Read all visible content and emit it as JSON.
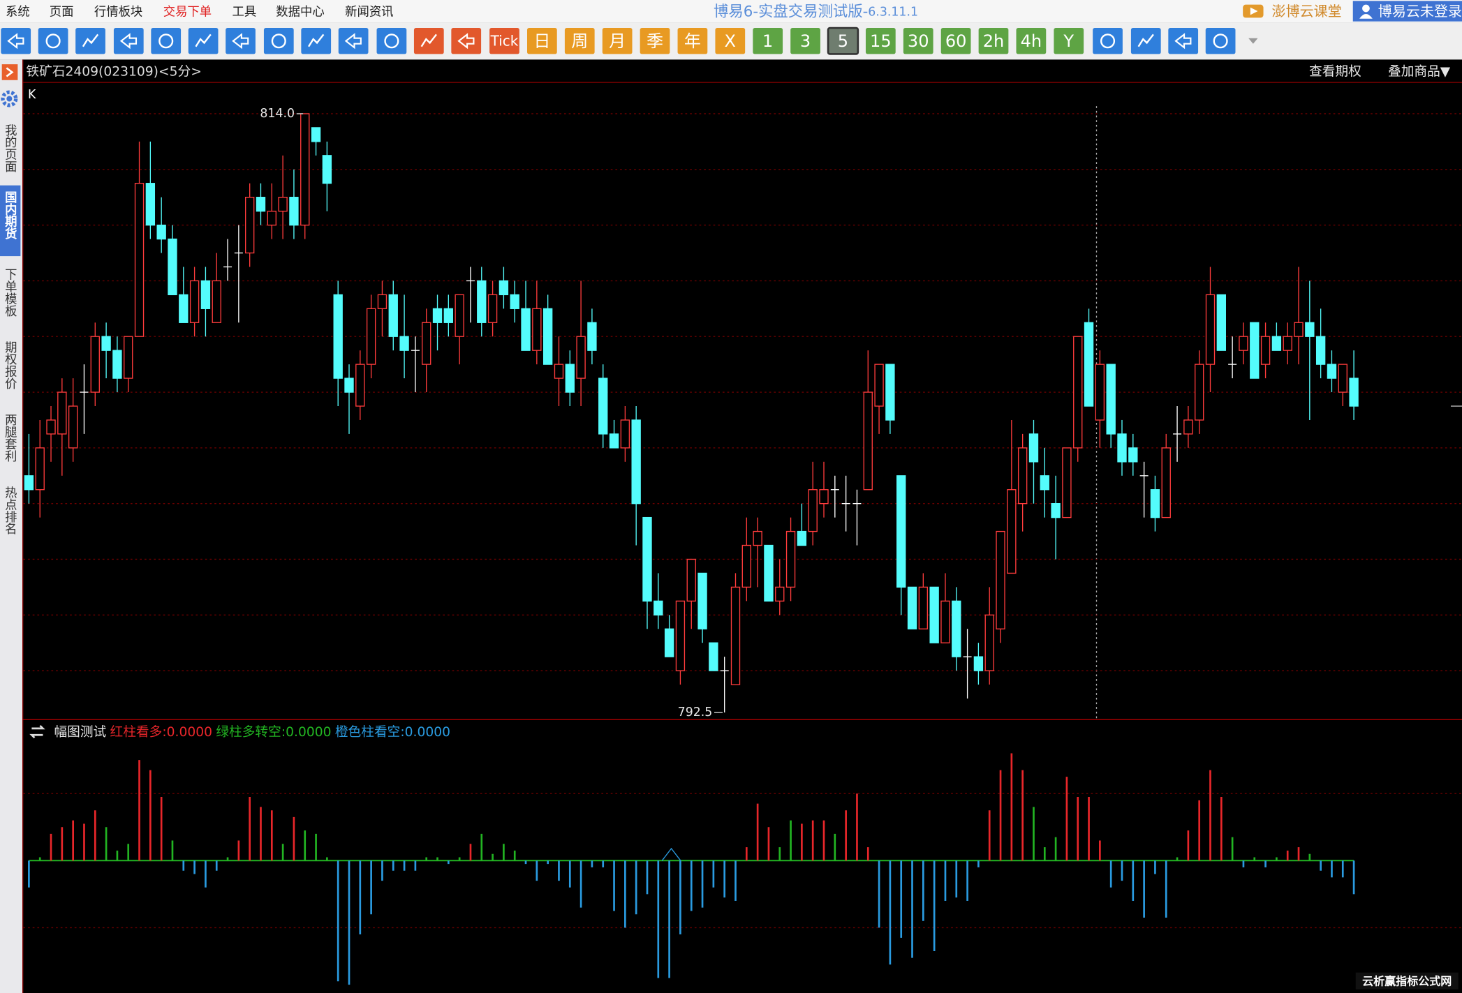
{
  "menu": [
    "系统",
    "页面",
    "行情板块",
    "交易下单",
    "工具",
    "数据中心",
    "新闻资讯"
  ],
  "menu_active": 3,
  "app_title": "博易6-实盘交易测试版-",
  "app_version": "6.3.11.1",
  "header_links": [
    "澎博云课堂",
    "博易云未登录"
  ],
  "toolbar_buttons": [
    {
      "label": "Tick",
      "color": "#e2582c"
    },
    {
      "label": "日",
      "color": "#e89a22"
    },
    {
      "label": "周",
      "color": "#e89a22"
    },
    {
      "label": "月",
      "color": "#e89a22"
    },
    {
      "label": "季",
      "color": "#e89a22"
    },
    {
      "label": "年",
      "color": "#e89a22"
    },
    {
      "label": "X",
      "color": "#e89a22"
    },
    {
      "label": "1",
      "color": "#5ea444"
    },
    {
      "label": "3",
      "color": "#5ea444"
    },
    {
      "label": "5",
      "color": "#6f7d6f",
      "selected": true
    },
    {
      "label": "15",
      "color": "#5ea444"
    },
    {
      "label": "30",
      "color": "#5ea444"
    },
    {
      "label": "60",
      "color": "#5ea444"
    },
    {
      "label": "2h",
      "color": "#5ea444"
    },
    {
      "label": "4h",
      "color": "#5ea444"
    },
    {
      "label": "Y",
      "color": "#5ea444"
    }
  ],
  "sidebar": [
    "我的页面",
    "国内期货",
    "下单模板",
    "期权报价",
    "两腿套利",
    "热点排名"
  ],
  "sidebar_active": 1,
  "chart_header": {
    "options_button": "查看期权",
    "overlay_button": "叠加商品▼"
  },
  "watermark": "云析赢指标公式网",
  "chart_data": [
    {
      "type": "candlestick",
      "title": "铁矿石2409(023109)<5分>",
      "label": "K",
      "up_color": "#ff3c3c",
      "down_color": "#54fcfc",
      "flat_color": "#ffffff",
      "ylim": [
        792.26,
        815.14
      ],
      "grid_lines": [
        794,
        796,
        798,
        800,
        802,
        804,
        806,
        808,
        810,
        812,
        814
      ],
      "max_label": {
        "value": 814,
        "label": "814.0"
      },
      "min_label": {
        "value": 792.5,
        "label": "792.5"
      },
      "open": [
        801,
        800.5,
        802.5,
        802.5,
        802,
        804,
        804,
        806,
        805.5,
        804.5,
        806,
        811.5,
        810,
        809.5,
        807.5,
        806.5,
        808,
        806.5,
        808.5,
        809,
        809,
        811,
        810,
        810.5,
        811,
        810,
        813.5,
        812.5,
        807.5,
        804.5,
        803.5,
        805,
        807,
        807.5,
        806,
        805.5,
        805,
        807,
        807,
        806,
        808,
        808,
        806.5,
        808,
        807.5,
        807,
        805.5,
        807,
        804.5,
        805,
        804.5,
        806.5,
        804.5,
        802.5,
        802,
        803,
        799.5,
        796.5,
        795.5,
        794,
        796.5,
        797.5,
        795,
        794,
        793.5,
        797,
        798.5,
        798.5,
        796.5,
        797,
        799,
        799,
        800,
        800.5,
        800,
        800,
        800.5,
        803.5,
        805,
        801,
        797,
        795.5,
        797,
        795,
        796.5,
        794.5,
        794.5,
        794,
        795.5,
        797.5,
        800,
        802.5,
        801,
        800,
        799.5,
        802,
        806.5,
        803,
        805,
        802.5,
        802,
        801,
        800.5,
        799.5,
        802.5,
        802.5,
        803,
        805,
        807.5,
        805,
        805.5,
        806.5,
        805,
        806,
        805.5,
        806,
        806.5,
        806,
        805,
        804,
        804.5
      ],
      "high": [
        802.5,
        803,
        803.5,
        804.5,
        804.5,
        805,
        806.5,
        806.5,
        806,
        806,
        813,
        813,
        811,
        810,
        808.5,
        808.5,
        808.5,
        809,
        809.5,
        810,
        811.5,
        811.5,
        811.5,
        812.5,
        812,
        814,
        813.5,
        813,
        808,
        805,
        805.5,
        807.5,
        808,
        808,
        807.5,
        806,
        807,
        807.5,
        807.5,
        807.5,
        808.5,
        808.5,
        808,
        808.5,
        808,
        808,
        808,
        807.5,
        806,
        805.5,
        808,
        807,
        805,
        803,
        803.5,
        803.5,
        799.5,
        797.5,
        796,
        796.5,
        798,
        797.5,
        795,
        794.5,
        797.5,
        799.5,
        799.5,
        798.5,
        798,
        799.5,
        800,
        801.5,
        801.5,
        801,
        801,
        800.5,
        805.5,
        805,
        805,
        801,
        797,
        797.5,
        797,
        797.5,
        797,
        795.5,
        795,
        797,
        799,
        803,
        802.5,
        803,
        802,
        801,
        802,
        806,
        807,
        805.5,
        805,
        803,
        802.5,
        801.5,
        801,
        802.5,
        803.5,
        803.5,
        805.5,
        808.5,
        807.5,
        806,
        806.5,
        806.5,
        806.5,
        806.5,
        806.5,
        808.5,
        808,
        807,
        805.5,
        805,
        805.5
      ],
      "low": [
        800,
        799.5,
        801.5,
        801,
        801.5,
        802.5,
        803.5,
        804.5,
        804,
        804,
        806,
        809.5,
        809,
        807.5,
        806.5,
        806,
        806,
        806.5,
        808,
        806.5,
        808.5,
        810,
        809.5,
        809.5,
        809.5,
        809.5,
        812.5,
        810.5,
        803.5,
        802.5,
        803,
        804.5,
        806,
        805.5,
        804.5,
        804,
        804,
        805.5,
        806,
        805,
        806.5,
        806,
        806,
        807,
        806.5,
        805.5,
        805,
        805,
        803.5,
        803.5,
        803.5,
        805,
        802,
        802,
        801.5,
        798.5,
        795.5,
        795.5,
        794.5,
        793.5,
        795.5,
        795,
        794,
        792.5,
        793.5,
        796.5,
        797,
        796.5,
        796,
        796.5,
        798.5,
        798.5,
        799.5,
        799.5,
        799,
        798.5,
        800.5,
        802.5,
        802.5,
        796,
        795.5,
        795.5,
        795,
        795,
        794,
        793,
        793.5,
        793.5,
        795,
        797.5,
        799,
        800,
        799.5,
        798,
        799.5,
        801.5,
        803.5,
        802,
        802,
        801,
        801,
        799.5,
        799,
        799.5,
        801.5,
        802,
        802.5,
        804,
        805.5,
        804.5,
        805,
        804.5,
        804.5,
        805.5,
        805,
        805,
        803,
        804.5,
        804,
        803.5,
        803
      ],
      "close": [
        800.5,
        802,
        803,
        804,
        803.5,
        804,
        806,
        805.5,
        804.5,
        806,
        811.5,
        810,
        809.5,
        807.5,
        806.5,
        808,
        807,
        808,
        808.5,
        809,
        811,
        810.5,
        810.5,
        811,
        810,
        814,
        813,
        811.5,
        804.5,
        804,
        805,
        807,
        807.5,
        806,
        805.5,
        805.5,
        806.5,
        806.5,
        806.5,
        807.5,
        808,
        806.5,
        807.5,
        807.5,
        807,
        805.5,
        807,
        805,
        805,
        804,
        806,
        805.5,
        802.5,
        802,
        803,
        800,
        796.5,
        796,
        794.5,
        796.5,
        798,
        795.5,
        794,
        794,
        797,
        798.5,
        799,
        796.5,
        797,
        799,
        798.5,
        800.5,
        800.5,
        800.5,
        800,
        800,
        804,
        805,
        803,
        797,
        795.5,
        797,
        795,
        796.5,
        794.5,
        794.5,
        794,
        796,
        799,
        800.5,
        802,
        801.5,
        800.5,
        799.5,
        802,
        806,
        803.5,
        805,
        802.5,
        801.5,
        801.5,
        801,
        799.5,
        802,
        802.5,
        803,
        805,
        807.5,
        805.5,
        805,
        806,
        804.5,
        806,
        805.5,
        806,
        806.5,
        806,
        805,
        804.5,
        805,
        803.5
      ]
    },
    {
      "type": "bar",
      "title": "幅图测试",
      "separator": ":",
      "zero_color": "#22b422",
      "ylim": [
        -19.6,
        21.1
      ],
      "grid_lines": [
        -10,
        10
      ],
      "series": [
        {
          "name": "红柱看多",
          "color": "#e8262a",
          "readout": {
            "value": 0,
            "label": "0.0000"
          },
          "values": [
            null,
            null,
            4,
            5,
            6,
            5.5,
            7.5,
            null,
            null,
            null,
            15,
            13.5,
            9.5,
            null,
            null,
            null,
            null,
            null,
            null,
            3,
            9.5,
            8,
            7.5,
            null,
            6.5,
            null,
            null,
            null,
            null,
            null,
            null,
            null,
            null,
            null,
            null,
            null,
            null,
            null,
            null,
            null,
            2.5,
            null,
            null,
            null,
            null,
            null,
            null,
            null,
            null,
            null,
            null,
            null,
            null,
            null,
            null,
            null,
            null,
            null,
            null,
            null,
            null,
            null,
            null,
            null,
            null,
            2,
            8.5,
            5,
            null,
            null,
            5.5,
            6,
            6,
            null,
            7.5,
            10,
            2,
            null,
            null,
            null,
            null,
            null,
            null,
            null,
            null,
            null,
            null,
            7.5,
            13.5,
            16,
            13.5,
            null,
            null,
            null,
            12.5,
            9.5,
            9.5,
            3,
            null,
            null,
            null,
            null,
            null,
            null,
            null,
            4.5,
            9,
            13.5,
            9.5,
            null,
            null,
            null,
            null,
            null,
            1.5,
            2,
            null,
            null,
            null,
            null,
            null
          ]
        },
        {
          "name": "绿柱多转空",
          "color": "#22b422",
          "readout": {
            "value": 0,
            "label": "0.0000"
          },
          "values": [
            null,
            0.5,
            null,
            null,
            null,
            null,
            null,
            5,
            1.5,
            2.5,
            null,
            null,
            null,
            3,
            null,
            null,
            null,
            null,
            0.5,
            null,
            null,
            null,
            null,
            2.5,
            null,
            4.5,
            4,
            0.5,
            null,
            null,
            null,
            null,
            null,
            null,
            null,
            null,
            0.5,
            0.5,
            null,
            0.5,
            null,
            4,
            1,
            2.5,
            1.5,
            null,
            null,
            null,
            null,
            null,
            null,
            null,
            null,
            null,
            null,
            null,
            null,
            null,
            null,
            null,
            null,
            null,
            null,
            null,
            null,
            null,
            null,
            null,
            2,
            6,
            null,
            null,
            null,
            4,
            null,
            null,
            null,
            null,
            null,
            null,
            null,
            null,
            null,
            null,
            null,
            null,
            null,
            null,
            null,
            null,
            null,
            8,
            2,
            3.5,
            null,
            null,
            null,
            null,
            null,
            null,
            null,
            null,
            null,
            null,
            0.5,
            null,
            null,
            null,
            null,
            3.5,
            null,
            0.5,
            null,
            0.5,
            null,
            null,
            1,
            null,
            null,
            null,
            null
          ]
        },
        {
          "name": "橙色柱看空",
          "color": "#2a9be0",
          "readout": {
            "value": 0,
            "label": "0.0000"
          },
          "values": [
            -4,
            null,
            null,
            null,
            null,
            null,
            null,
            null,
            null,
            null,
            null,
            null,
            null,
            null,
            -1.5,
            -2,
            -4,
            -1.5,
            null,
            null,
            null,
            null,
            null,
            null,
            null,
            null,
            null,
            null,
            -18,
            -18.5,
            -11,
            -8,
            -3,
            -1.5,
            -1.5,
            -1.5,
            null,
            null,
            -0.5,
            null,
            null,
            null,
            null,
            null,
            null,
            -0.5,
            -3,
            -0.5,
            -3,
            -4,
            -7,
            -1,
            -1,
            -7.5,
            -10,
            -8,
            -5,
            -17.5,
            -17.5,
            -11,
            -7.5,
            -7,
            -4,
            -5.5,
            -6,
            null,
            null,
            null,
            null,
            null,
            null,
            null,
            null,
            null,
            null,
            null,
            null,
            -10,
            -15.5,
            -11.5,
            -14.5,
            -9,
            -13.5,
            -6,
            -5.5,
            -6,
            -1,
            null,
            null,
            null,
            null,
            null,
            null,
            null,
            null,
            null,
            null,
            null,
            -4,
            -3,
            -6,
            -8.5,
            -2,
            -8.5,
            null,
            null,
            null,
            null,
            null,
            null,
            -1,
            null,
            -1,
            null,
            null,
            null,
            null,
            -1.5,
            -2.5,
            -2.5,
            -5
          ]
        }
      ]
    }
  ]
}
